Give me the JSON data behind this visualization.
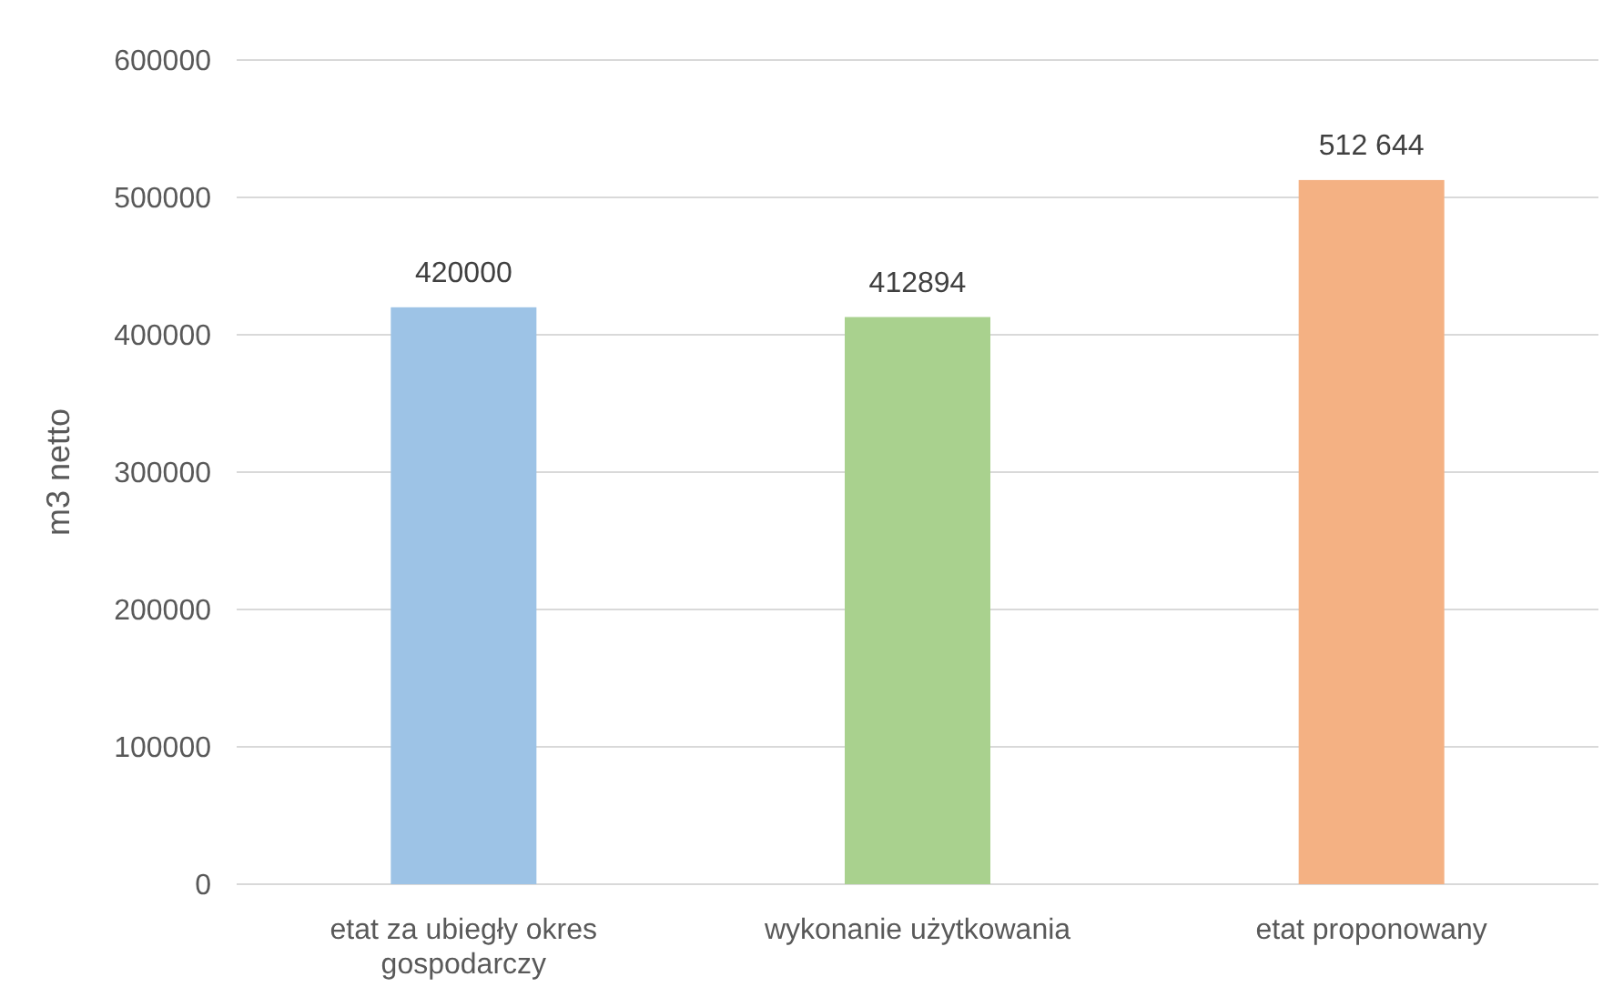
{
  "chart_data": {
    "type": "bar",
    "ylabel": "m3 netto",
    "categories": [
      "etat za ubiegły okres gospodarczy",
      "wykonanie użytkowania",
      "etat proponowany"
    ],
    "values": [
      420000,
      412894,
      512644
    ],
    "colors": [
      "#9dc3e6",
      "#a9d18e",
      "#f4b183"
    ],
    "value_labels": [
      "420000",
      "412894",
      "512 644"
    ],
    "ylim": [
      0,
      600000
    ],
    "yticks": [
      0,
      100000,
      200000,
      300000,
      400000,
      500000,
      600000
    ],
    "grid": "y"
  }
}
